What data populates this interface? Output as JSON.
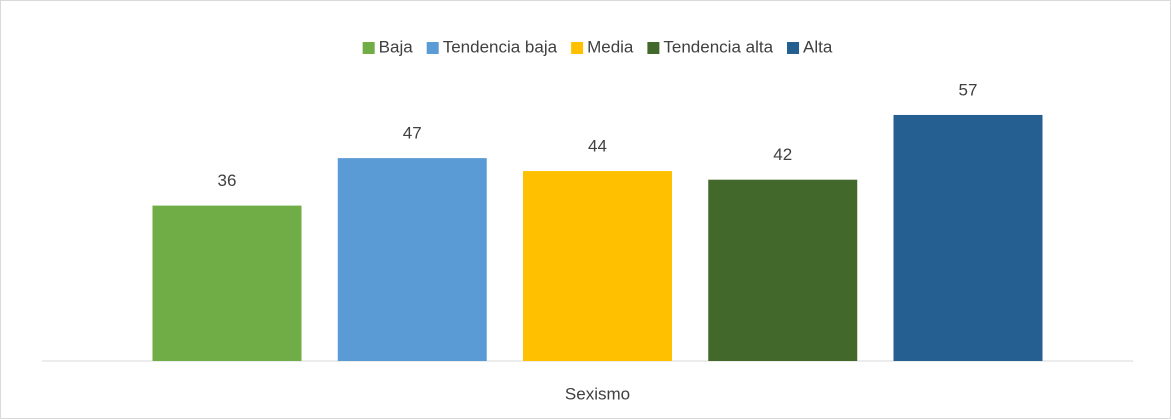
{
  "chart_data": {
    "type": "bar",
    "categories": [
      "Sexismo"
    ],
    "series": [
      {
        "name": "Baja",
        "color": "#70ad47",
        "values": [
          36
        ]
      },
      {
        "name": "Tendencia baja",
        "color": "#5b9bd5",
        "values": [
          47
        ]
      },
      {
        "name": "Media",
        "color": "#ffc000",
        "values": [
          44
        ]
      },
      {
        "name": "Tendencia alta",
        "color": "#43682b",
        "values": [
          42
        ]
      },
      {
        "name": "Alta",
        "color": "#255e91",
        "values": [
          57
        ]
      }
    ],
    "ylim": [
      0,
      60
    ],
    "legend": "top",
    "data_labels": true
  }
}
